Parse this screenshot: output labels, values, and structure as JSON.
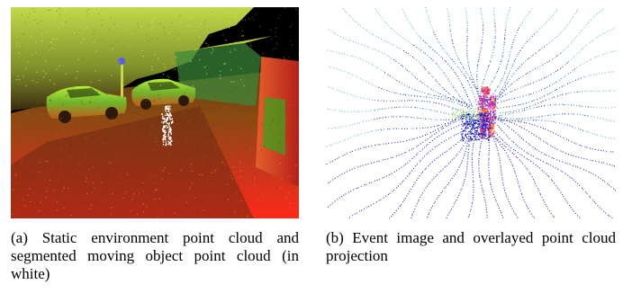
{
  "figures": [
    {
      "id": "a",
      "caption": "(a) Static environment point cloud and segmented moving object point cloud (in white)"
    },
    {
      "id": "b",
      "caption": "(b) Event image and overlayed point cloud projection"
    }
  ],
  "colors": {
    "static_cloud_near": "#e8341a",
    "static_cloud_far": "#9ccc3a",
    "moving_object": "#ffffff",
    "event_points_dark": "#1b1ba8",
    "event_points_light": "#5fb7c9",
    "projection_pink": "#ff3fa0",
    "projection_red": "#ff2a2a",
    "projection_orange": "#ff9a1a"
  }
}
